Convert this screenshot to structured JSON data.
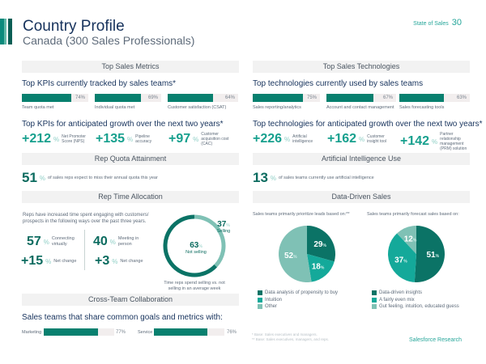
{
  "header": {
    "title": "Country Profile",
    "subtitle": "Canada (300 Sales Professionals)",
    "brand": "State of Sales",
    "page_number": "30"
  },
  "colors": {
    "dark_teal": "#0b6b5f",
    "teal": "#08806f",
    "bright_teal": "#17a08e",
    "light_teal": "#8fcfc6",
    "pie_dark": "#0b7366",
    "pie_mid": "#14a99a",
    "pie_light": "#7fc1b5",
    "band_bg": "#f2f2f2"
  },
  "top_sales_metrics": {
    "band": "Top Sales Metrics",
    "current_heading": "Top KPIs currently tracked by sales teams*",
    "current_kpis": [
      {
        "label": "Team quota met",
        "value": 74,
        "display": "74%"
      },
      {
        "label": "Individual quota met",
        "value": 69,
        "display": "69%"
      },
      {
        "label": "Customer satisfaction (CSAT)",
        "value": 64,
        "display": "64%"
      }
    ],
    "growth_heading": "Top KPIs for anticipated growth over the next two years*",
    "growth_kpis": [
      {
        "value": "+212",
        "pct": "%",
        "label": "Net Promoter Score (NPS)"
      },
      {
        "value": "+135",
        "pct": "%",
        "label": "Pipeline accuracy"
      },
      {
        "value": "+97",
        "pct": "%",
        "label": "Customer acquisition cost (CAC)"
      }
    ]
  },
  "top_sales_technologies": {
    "band": "Top Sales Technologies",
    "current_heading": "Top technologies currently used by sales teams",
    "current_tech": [
      {
        "label": "Sales reporting/analytics",
        "value": 75,
        "display": "75%"
      },
      {
        "label": "Account and contact management",
        "value": 67,
        "display": "67%"
      },
      {
        "label": "Sales forecasting tools",
        "value": 63,
        "display": "63%"
      }
    ],
    "growth_heading": "Top technologies for anticipated growth over the next two years*",
    "growth_tech": [
      {
        "value": "+226",
        "pct": "%",
        "label": "Artificial intelligence"
      },
      {
        "value": "+162",
        "pct": "%",
        "label": "Customer insight tool"
      },
      {
        "value": "+142",
        "pct": "%",
        "label": "Partner relationship management (PRM) solution"
      }
    ]
  },
  "rep_quota": {
    "band": "Rep Quota Attainment",
    "value": "51",
    "pct": "%",
    "text": "of sales reps expect to miss their annual quota this year"
  },
  "ai_use": {
    "band": "Artificial Intelligence Use",
    "value": "13",
    "pct": "%",
    "text": "of sales teams currently use artificial intelligence"
  },
  "rep_time": {
    "band": "Rep Time Allocation",
    "intro": "Reps have increased time spent engaging with customers/ prospects in the following ways over the past three years.",
    "stats": [
      {
        "value": "57",
        "pct": "%",
        "label": "Connecting virtually"
      },
      {
        "value": "40",
        "pct": "%",
        "label": "Meeting in person"
      },
      {
        "value": "+15",
        "pct": "%",
        "label": "Net change"
      },
      {
        "value": "+3",
        "pct": "%",
        "label": "Net change"
      }
    ],
    "donut": {
      "selling": {
        "value": 37,
        "label": "Selling"
      },
      "not_selling": {
        "value": 63,
        "label": "Not selling"
      },
      "caption": "Time reps spend selling vs. not selling in an average week"
    }
  },
  "data_driven": {
    "band": "Data-Driven Sales",
    "pie1": {
      "caption": "Sales teams primarily prioritize leads based on:**",
      "slices": [
        {
          "label": "Data analysis of propensity to buy",
          "value": 29
        },
        {
          "label": "Intuition",
          "value": 18
        },
        {
          "label": "Other",
          "value": 52
        }
      ]
    },
    "pie2": {
      "caption": "Sales teams primarily forecast sales based on:",
      "slices": [
        {
          "label": "Data-driven insights",
          "value": 51
        },
        {
          "label": "A fairly even mix",
          "value": 37
        },
        {
          "label": "Gut feeling, intuition, educated guess",
          "value": 12
        }
      ]
    }
  },
  "cross_team": {
    "band": "Cross-Team Collaboration",
    "heading": "Sales teams that share common goals and metrics with:",
    "items": [
      {
        "label": "Marketing",
        "value": 77,
        "display": "77%"
      },
      {
        "label": "Service",
        "value": 76,
        "display": "76%"
      }
    ]
  },
  "footnotes": [
    "* Base: Sales executives and managers.",
    "** Base: Sales executives, managers, and reps."
  ],
  "source": "Salesforce Research"
}
